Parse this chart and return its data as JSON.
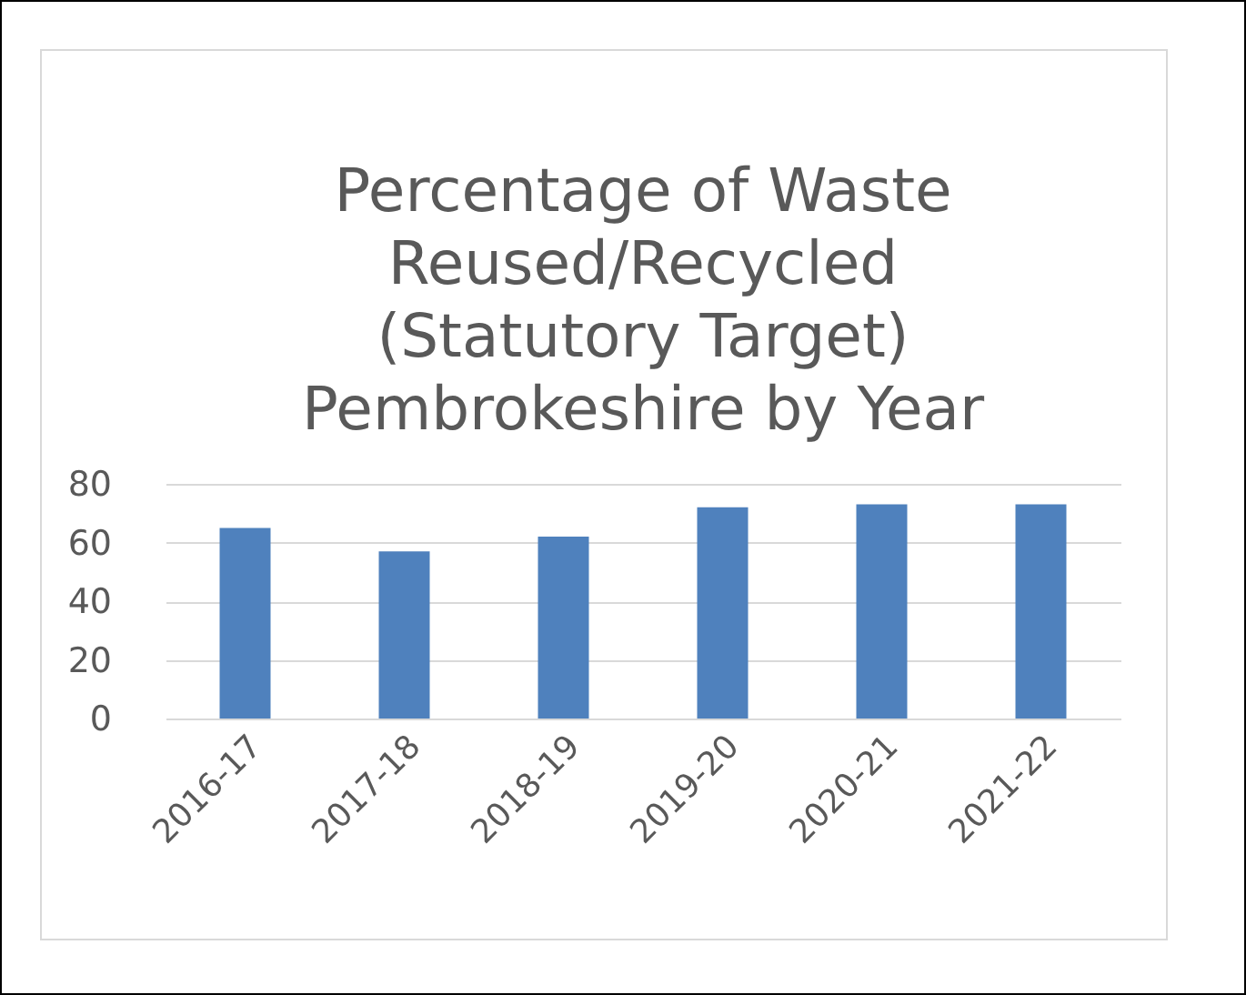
{
  "chart_data": {
    "type": "bar",
    "title": "Percentage of Waste Reused/Recycled (Statutory Target) Pembrokeshire by Year",
    "categories": [
      "2016-17",
      "2017-18",
      "2018-19",
      "2019-20",
      "2020-21",
      "2021-22"
    ],
    "values": [
      65,
      57,
      62,
      72,
      73,
      73
    ],
    "color": "#4f81bd",
    "ylim": [
      0,
      80
    ],
    "yticks": [
      0,
      20,
      40,
      60,
      80
    ],
    "grid": "y"
  }
}
